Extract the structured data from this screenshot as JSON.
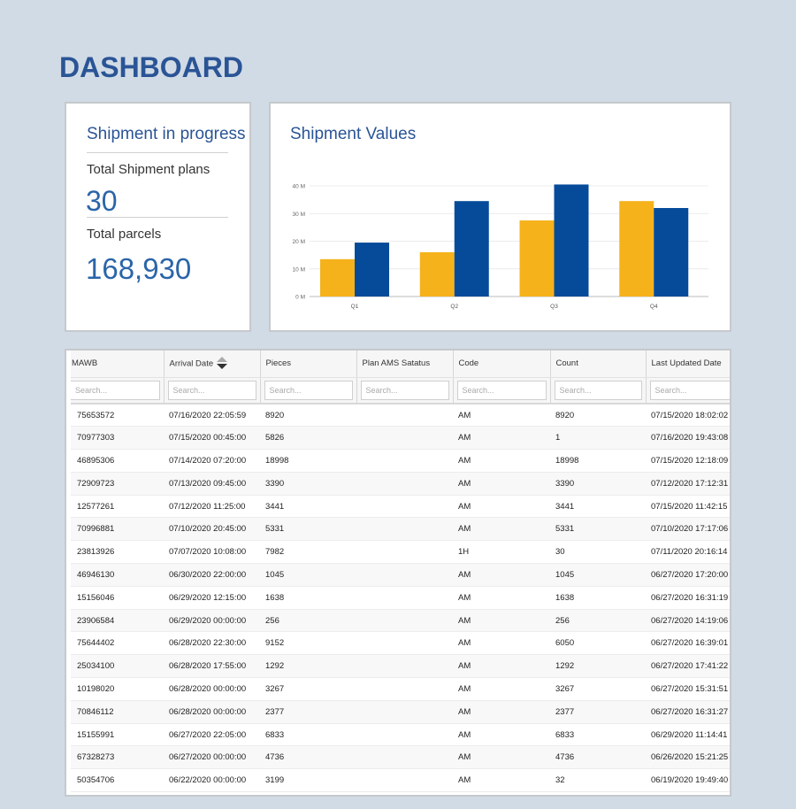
{
  "page": {
    "title": "DASHBOARD"
  },
  "progress": {
    "title": "Shipment in progress",
    "plans_label": "Total Shipment plans",
    "plans_value": "30",
    "parcels_label": "Total parcels",
    "parcels_value": "168,930"
  },
  "chart": {
    "title": "Shipment Values"
  },
  "chart_data": {
    "type": "bar",
    "categories": [
      "Q1",
      "Q2",
      "Q3",
      "Q4"
    ],
    "series": [
      {
        "values": [
          13.5,
          16,
          27.5,
          34.5
        ],
        "color": "#f5b21b"
      },
      {
        "values": [
          19.5,
          34.5,
          40.5,
          32
        ],
        "color": "#054b99"
      }
    ],
    "yticks": [
      "0 M",
      "10 M",
      "20 M",
      "30 M",
      "40 M"
    ],
    "ylim": [
      0,
      40
    ],
    "grid": true
  },
  "table": {
    "columns": [
      "MAWB",
      "Arrival Date",
      "Pieces",
      "Plan AMS Satatus",
      "Code",
      "Count",
      "Last Updated Date"
    ],
    "search_placeholder": "Search...",
    "rows": [
      [
        "75653572",
        "07/16/2020 22:05:59",
        "8920",
        "",
        "AM",
        "8920",
        "07/15/2020 18:02:02"
      ],
      [
        "70977303",
        "07/15/2020 00:45:00",
        "5826",
        "",
        "AM",
        "1",
        "07/16/2020 19:43:08"
      ],
      [
        "46895306",
        "07/14/2020 07:20:00",
        "18998",
        "",
        "AM",
        "18998",
        "07/15/2020 12:18:09"
      ],
      [
        "72909723",
        "07/13/2020 09:45:00",
        "3390",
        "",
        "AM",
        "3390",
        "07/12/2020 17:12:31"
      ],
      [
        "12577261",
        "07/12/2020 11:25:00",
        "3441",
        "",
        "AM",
        "3441",
        "07/15/2020 11:42:15"
      ],
      [
        "70996881",
        "07/10/2020 20:45:00",
        "5331",
        "",
        "AM",
        "5331",
        "07/10/2020 17:17:06"
      ],
      [
        "23813926",
        "07/07/2020 10:08:00",
        "7982",
        "",
        "1H",
        "30",
        "07/11/2020 20:16:14"
      ],
      [
        "46946130",
        "06/30/2020 22:00:00",
        "1045",
        "",
        "AM",
        "1045",
        "06/27/2020 17:20:00"
      ],
      [
        "15156046",
        "06/29/2020 12:15:00",
        "1638",
        "",
        "AM",
        "1638",
        "06/27/2020 16:31:19"
      ],
      [
        "23906584",
        "06/29/2020 00:00:00",
        "256",
        "",
        "AM",
        "256",
        "06/27/2020 14:19:06"
      ],
      [
        "75644402",
        "06/28/2020 22:30:00",
        "9152",
        "",
        "AM",
        "6050",
        "06/27/2020 16:39:01"
      ],
      [
        "25034100",
        "06/28/2020 17:55:00",
        "1292",
        "",
        "AM",
        "1292",
        "06/27/2020 17:41:22"
      ],
      [
        "10198020",
        "06/28/2020 00:00:00",
        "3267",
        "",
        "AM",
        "3267",
        "06/27/2020 15:31:51"
      ],
      [
        "70846112",
        "06/28/2020 00:00:00",
        "2377",
        "",
        "AM",
        "2377",
        "06/27/2020 16:31:27"
      ],
      [
        "15155991",
        "06/27/2020 22:05:00",
        "6833",
        "",
        "AM",
        "6833",
        "06/29/2020 11:14:41"
      ],
      [
        "67328273",
        "06/27/2020 00:00:00",
        "4736",
        "",
        "AM",
        "4736",
        "06/26/2020 15:21:25"
      ],
      [
        "50354706",
        "06/22/2020 00:00:00",
        "3199",
        "",
        "AM",
        "32",
        "06/19/2020 19:49:40"
      ]
    ]
  }
}
